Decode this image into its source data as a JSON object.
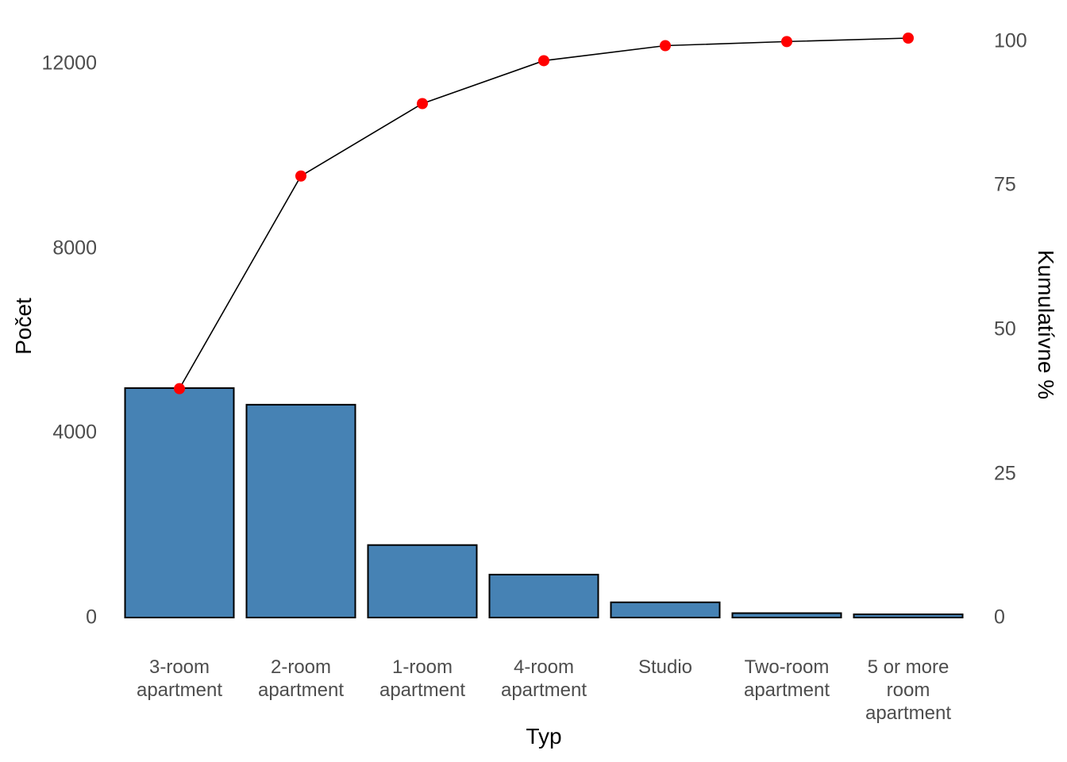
{
  "chart_data": {
    "type": "pareto (bar + cumulative line)",
    "title": "",
    "xlabel": "Typ",
    "ylabel_left": "Počet",
    "ylabel_right": "Kumulatívne %",
    "categories": [
      "3-room\napartment",
      "2-room\napartment",
      "1-room\napartment",
      "4-room\napartment",
      "Studio",
      "Two-room\napartment",
      "5 or more\nroom\napartment"
    ],
    "series": [
      {
        "name": "Počet (bar)",
        "values": [
          4970,
          4610,
          1570,
          930,
          330,
          95,
          70
        ]
      },
      {
        "name": "Kumulatívne % (line)",
        "values": [
          39.5,
          76.2,
          88.7,
          96.1,
          98.7,
          99.4,
          100
        ]
      }
    ],
    "left_axis": {
      "ticks": [
        "0",
        "4000",
        "8000",
        "12000"
      ],
      "range": [
        0,
        12000
      ]
    },
    "right_axis": {
      "ticks": [
        "0",
        "25",
        "50",
        "75",
        "100"
      ],
      "range": [
        0,
        100
      ]
    },
    "grid": "off",
    "legend": "none",
    "colors": {
      "bar_fill": "#4682b4",
      "bar_stroke": "#000000",
      "line": "#000000",
      "point": "#ff0000",
      "tick_text": "#4d4d4d",
      "title_text": "#000000",
      "background": "#ffffff"
    }
  }
}
